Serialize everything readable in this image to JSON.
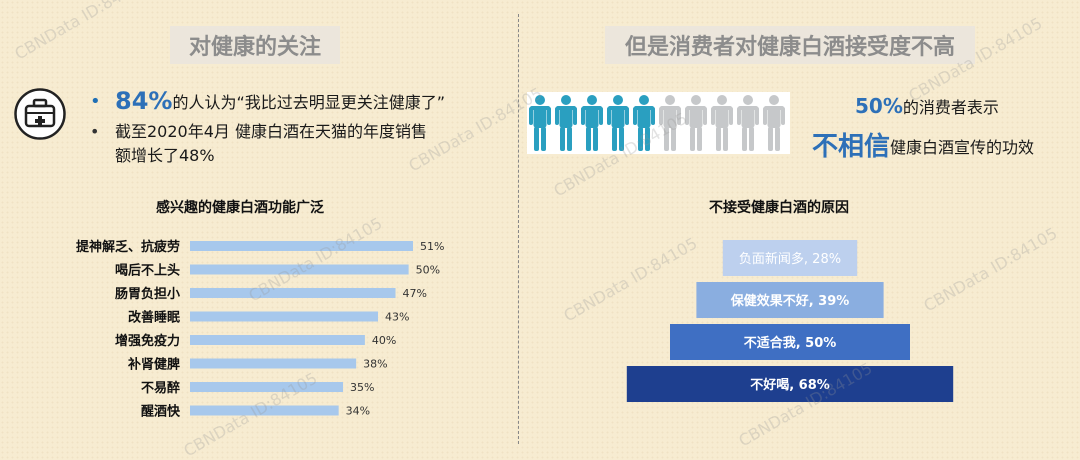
{
  "left_panel": {
    "title": "对健康的关注",
    "bullet1_pct": "84%",
    "bullet1_text": "的人认为“我比过去明显更关注健康了”",
    "bullet2_line1": "截至2020年4月 健康白酒在天猫的年度销售",
    "bullet2_line2": "额增长了48%"
  },
  "right_panel": {
    "title": "但是消费者对健康白酒接受度不高",
    "callout_pct": "50%",
    "callout_text1": "的消费者表示",
    "callout_strong": "不相信",
    "callout_text2": "健康白酒宣传的功效"
  },
  "icons": [
    "medical-kit-icon",
    "person-icon"
  ],
  "watermark": "CBNData ID:84105",
  "colors": {
    "bar_fill": "#a7c8ec",
    "accent_blue": "#2d70b8",
    "funnel_levels": [
      "#bdd0ee",
      "#8aaee0",
      "#3f6fc3",
      "#1e3f8f"
    ],
    "figure_teal": "#2a9fc0",
    "figure_grey": "#c6c8ca"
  },
  "chart_data": [
    {
      "type": "bar",
      "orientation": "horizontal",
      "title": "感兴趣的健康白酒功能广泛",
      "categories": [
        "提神解乏、抗疲劳",
        "喝后不上头",
        "肠胃负担小",
        "改善睡眠",
        "增强免疫力",
        "补肾健脾",
        "不易醉",
        "醒酒快"
      ],
      "values": [
        51,
        50,
        47,
        43,
        40,
        38,
        35,
        34
      ],
      "data_labels": [
        "51%",
        "50%",
        "47%",
        "43%",
        "40%",
        "38%",
        "35%",
        "34%"
      ],
      "unit": "%",
      "grid": false
    },
    {
      "type": "funnel",
      "title": "不接受健康白酒的原因",
      "labels": [
        "负面新闻多, 28%",
        "保健效果不好, 39%",
        "不适合我, 50%",
        "不好喝, 68%"
      ],
      "values": [
        28,
        39,
        50,
        68
      ],
      "unit": "%"
    },
    {
      "type": "pictograph",
      "total": 10,
      "highlighted": 5,
      "value_pct": 50
    }
  ]
}
